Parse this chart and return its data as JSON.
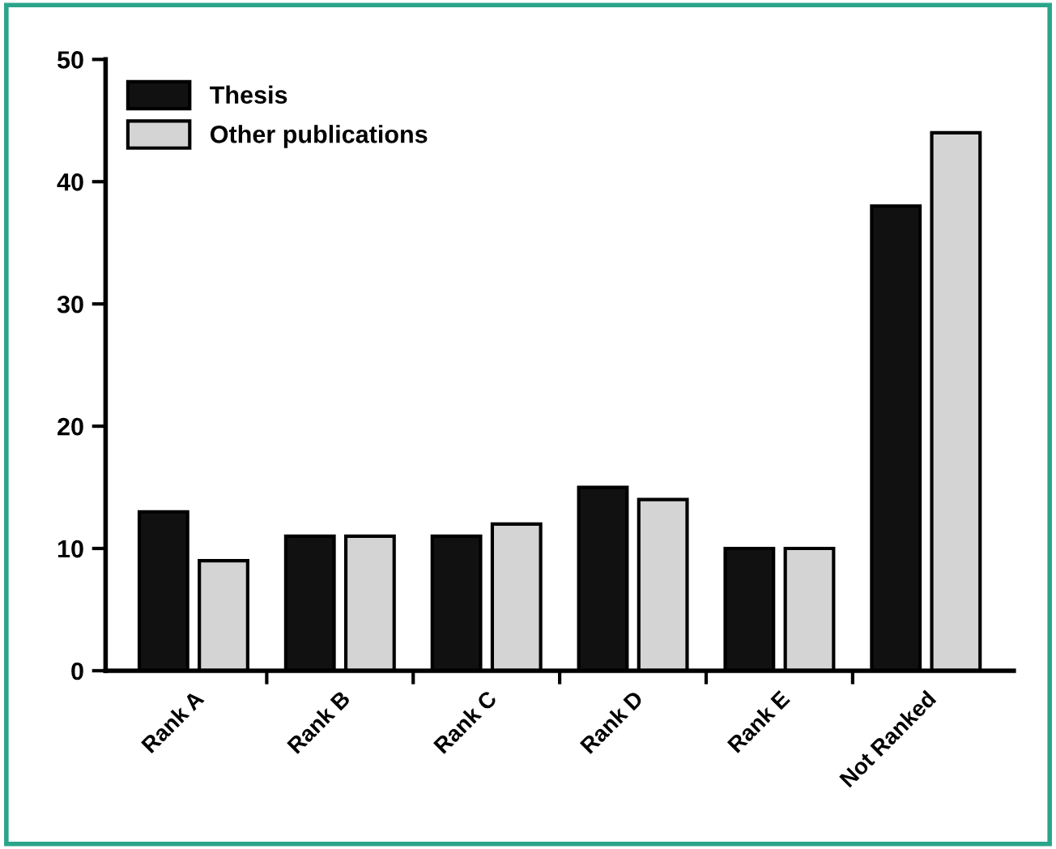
{
  "chart_data": {
    "type": "bar",
    "categories": [
      "Rank A",
      "Rank B",
      "Rank C",
      "Rank D",
      "Rank E",
      "Not Ranked"
    ],
    "series": [
      {
        "name": "Thesis",
        "color": "#111111",
        "values": [
          13,
          11,
          11,
          15,
          10,
          38
        ]
      },
      {
        "name": "Other publications",
        "color": "#d4d4d4",
        "values": [
          9,
          11,
          12,
          14,
          10,
          44
        ]
      }
    ],
    "ylim": [
      0,
      50
    ],
    "yticks": [
      0,
      10,
      20,
      30,
      40,
      50
    ],
    "grid": false,
    "legend": "top left"
  }
}
